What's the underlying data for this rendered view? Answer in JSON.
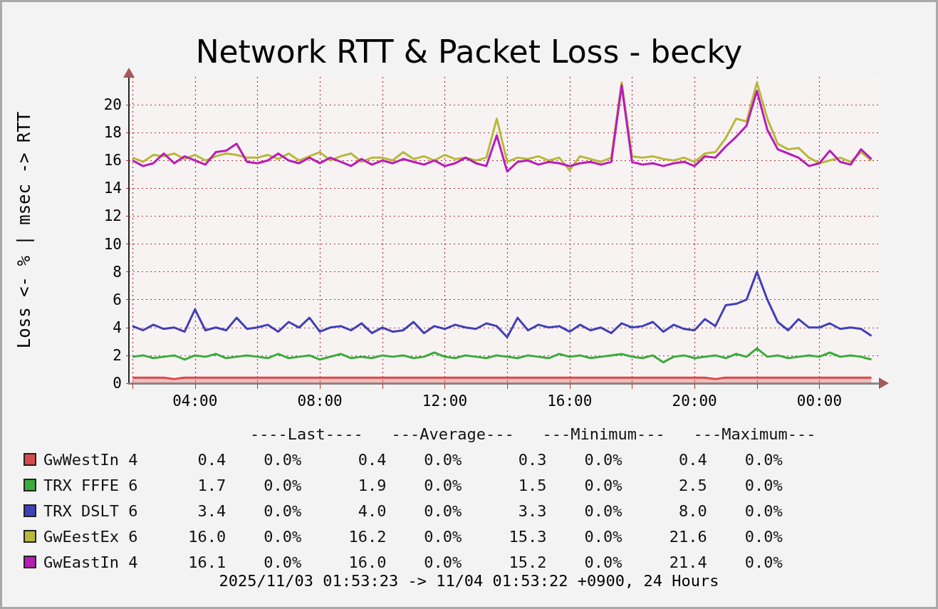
{
  "chart_data": {
    "type": "line",
    "title": "Network RTT & Packet Loss - becky",
    "ylabel": "Loss <- % | msec -> RTT",
    "xlim": [
      "2025-11-03T01:53",
      "2025-11-04T01:53"
    ],
    "xticks": [
      {
        "value": "2025-11-03T02:00",
        "label": null
      },
      {
        "value": "2025-11-03T04:00",
        "label": "04:00"
      },
      {
        "value": "2025-11-03T06:00",
        "label": null
      },
      {
        "value": "2025-11-03T08:00",
        "label": "08:00"
      },
      {
        "value": "2025-11-03T10:00",
        "label": null
      },
      {
        "value": "2025-11-03T12:00",
        "label": "12:00"
      },
      {
        "value": "2025-11-03T14:00",
        "label": null
      },
      {
        "value": "2025-11-03T16:00",
        "label": "16:00"
      },
      {
        "value": "2025-11-03T18:00",
        "label": null
      },
      {
        "value": "2025-11-03T20:00",
        "label": "20:00"
      },
      {
        "value": "2025-11-03T22:00",
        "label": null
      },
      {
        "value": "2025-11-04T00:00",
        "label": "00:00"
      }
    ],
    "ylim": [
      0,
      22
    ],
    "yticks": [
      0,
      2,
      4,
      6,
      8,
      10,
      12,
      14,
      16,
      18,
      20
    ],
    "grid": true,
    "legend": "bottom",
    "x": [
      "2025-11-03T02:00",
      "2025-11-03T02:20",
      "2025-11-03T02:40",
      "2025-11-03T03:00",
      "2025-11-03T03:20",
      "2025-11-03T03:40",
      "2025-11-03T04:00",
      "2025-11-03T04:20",
      "2025-11-03T04:40",
      "2025-11-03T05:00",
      "2025-11-03T05:20",
      "2025-11-03T05:40",
      "2025-11-03T06:00",
      "2025-11-03T06:20",
      "2025-11-03T06:40",
      "2025-11-03T07:00",
      "2025-11-03T07:20",
      "2025-11-03T07:40",
      "2025-11-03T08:00",
      "2025-11-03T08:20",
      "2025-11-03T08:40",
      "2025-11-03T09:00",
      "2025-11-03T09:20",
      "2025-11-03T09:40",
      "2025-11-03T10:00",
      "2025-11-03T10:20",
      "2025-11-03T10:40",
      "2025-11-03T11:00",
      "2025-11-03T11:20",
      "2025-11-03T11:40",
      "2025-11-03T12:00",
      "2025-11-03T12:20",
      "2025-11-03T12:40",
      "2025-11-03T13:00",
      "2025-11-03T13:20",
      "2025-11-03T13:40",
      "2025-11-03T14:00",
      "2025-11-03T14:20",
      "2025-11-03T14:40",
      "2025-11-03T15:00",
      "2025-11-03T15:20",
      "2025-11-03T15:40",
      "2025-11-03T16:00",
      "2025-11-03T16:20",
      "2025-11-03T16:40",
      "2025-11-03T17:00",
      "2025-11-03T17:20",
      "2025-11-03T17:40",
      "2025-11-03T18:00",
      "2025-11-03T18:20",
      "2025-11-03T18:40",
      "2025-11-03T19:00",
      "2025-11-03T19:20",
      "2025-11-03T19:40",
      "2025-11-03T20:00",
      "2025-11-03T20:20",
      "2025-11-03T20:40",
      "2025-11-03T21:00",
      "2025-11-03T21:20",
      "2025-11-03T21:40",
      "2025-11-03T22:00",
      "2025-11-03T22:20",
      "2025-11-03T22:40",
      "2025-11-03T23:00",
      "2025-11-03T23:20",
      "2025-11-03T23:40",
      "2025-11-04T00:00",
      "2025-11-04T00:20",
      "2025-11-04T00:40",
      "2025-11-04T01:00",
      "2025-11-04T01:20",
      "2025-11-04T01:40"
    ],
    "series": [
      {
        "name": "GwWestIn 4",
        "type": "area",
        "color": "#d84a4a",
        "values": [
          0.4,
          0.4,
          0.4,
          0.4,
          0.3,
          0.4,
          0.4,
          0.4,
          0.4,
          0.4,
          0.4,
          0.4,
          0.4,
          0.4,
          0.4,
          0.4,
          0.4,
          0.4,
          0.4,
          0.4,
          0.4,
          0.4,
          0.4,
          0.4,
          0.4,
          0.4,
          0.4,
          0.4,
          0.4,
          0.4,
          0.4,
          0.4,
          0.4,
          0.4,
          0.4,
          0.4,
          0.4,
          0.4,
          0.4,
          0.4,
          0.4,
          0.4,
          0.4,
          0.4,
          0.4,
          0.4,
          0.4,
          0.4,
          0.4,
          0.4,
          0.4,
          0.4,
          0.4,
          0.4,
          0.4,
          0.4,
          0.3,
          0.4,
          0.4,
          0.4,
          0.4,
          0.4,
          0.4,
          0.4,
          0.4,
          0.4,
          0.4,
          0.4,
          0.4,
          0.4,
          0.4,
          0.4
        ]
      },
      {
        "name": "TRX FFFE 6",
        "type": "line",
        "color": "#3aac3a",
        "values": [
          1.9,
          2.0,
          1.8,
          1.9,
          2.0,
          1.7,
          2.0,
          1.9,
          2.1,
          1.8,
          1.9,
          2.0,
          1.9,
          1.8,
          2.1,
          1.8,
          1.9,
          2.0,
          1.7,
          1.9,
          2.1,
          1.8,
          1.9,
          1.8,
          2.0,
          1.9,
          2.0,
          1.8,
          1.9,
          2.2,
          1.9,
          1.8,
          2.0,
          1.9,
          1.8,
          2.0,
          1.9,
          1.8,
          2.0,
          1.9,
          1.8,
          2.1,
          1.9,
          2.0,
          1.8,
          1.9,
          2.0,
          2.1,
          1.9,
          1.8,
          2.0,
          1.5,
          1.9,
          2.0,
          1.8,
          1.9,
          2.0,
          1.8,
          2.1,
          1.9,
          2.5,
          1.9,
          2.0,
          1.8,
          1.9,
          2.0,
          1.9,
          2.2,
          1.9,
          2.0,
          1.9,
          1.7
        ]
      },
      {
        "name": "TRX DSLT 6",
        "type": "line",
        "color": "#4040b8",
        "values": [
          4.1,
          3.8,
          4.2,
          3.9,
          4.0,
          3.7,
          5.3,
          3.8,
          4.0,
          3.8,
          4.7,
          3.9,
          4.0,
          4.2,
          3.7,
          4.4,
          4.0,
          4.7,
          3.7,
          4.0,
          4.1,
          3.8,
          4.3,
          3.6,
          4.0,
          3.7,
          3.8,
          4.4,
          3.6,
          4.1,
          3.9,
          4.2,
          4.0,
          3.9,
          4.3,
          4.1,
          3.3,
          4.7,
          3.8,
          4.2,
          4.0,
          4.1,
          3.7,
          4.2,
          3.8,
          4.0,
          3.6,
          4.3,
          4.0,
          4.1,
          4.4,
          3.7,
          4.2,
          3.9,
          3.8,
          4.6,
          4.1,
          5.6,
          5.7,
          6.0,
          8.0,
          6.0,
          4.4,
          3.8,
          4.6,
          4.0,
          4.0,
          4.3,
          3.9,
          4.0,
          3.9,
          3.4
        ]
      },
      {
        "name": "GwEestEx 6",
        "type": "line",
        "color": "#b8b83a",
        "values": [
          16.2,
          15.9,
          16.4,
          16.3,
          16.5,
          16.1,
          16.4,
          16.0,
          16.3,
          16.5,
          16.4,
          16.2,
          16.2,
          16.4,
          16.1,
          16.5,
          16.0,
          16.3,
          16.6,
          16.0,
          16.3,
          16.5,
          15.9,
          16.2,
          16.2,
          16.0,
          16.6,
          16.1,
          16.3,
          16.0,
          16.4,
          16.1,
          16.2,
          16.0,
          16.2,
          19.0,
          15.9,
          16.2,
          16.1,
          16.3,
          16.0,
          16.2,
          15.3,
          16.3,
          16.1,
          15.9,
          16.2,
          21.6,
          16.3,
          16.2,
          16.3,
          16.1,
          16.0,
          16.2,
          15.9,
          16.5,
          16.6,
          17.6,
          19.0,
          18.8,
          21.6,
          19.0,
          17.2,
          16.8,
          16.9,
          16.2,
          15.8,
          16.0,
          16.2,
          15.9,
          16.6,
          16.0
        ]
      },
      {
        "name": "GwEastIn 4",
        "type": "line",
        "color": "#b81cb8",
        "values": [
          16.0,
          15.6,
          15.8,
          16.5,
          15.8,
          16.3,
          16.0,
          15.7,
          16.6,
          16.7,
          17.2,
          15.9,
          15.8,
          16.0,
          16.5,
          16.0,
          15.8,
          16.2,
          15.8,
          16.2,
          15.9,
          15.6,
          16.1,
          15.7,
          16.0,
          15.8,
          16.1,
          15.9,
          15.7,
          16.0,
          15.6,
          15.8,
          16.2,
          15.8,
          15.6,
          17.8,
          15.2,
          15.9,
          16.0,
          15.7,
          15.9,
          15.8,
          15.6,
          15.8,
          15.9,
          15.7,
          15.9,
          21.4,
          15.9,
          15.7,
          15.8,
          15.6,
          15.8,
          15.9,
          15.6,
          16.3,
          16.2,
          17.0,
          17.7,
          18.5,
          21.0,
          18.2,
          16.8,
          16.5,
          16.2,
          15.6,
          15.8,
          16.7,
          15.9,
          15.7,
          16.8,
          16.1
        ]
      }
    ],
    "annotations": [
      "----Last----   ---Average---   ---Minimum---   ---Maximum---",
      "  0.4    0.0%      0.4    0.0%      0.3    0.0%      0.4    0.0%",
      "  1.7    0.0%      1.9    0.0%      1.5    0.0%      2.5    0.0%",
      "  3.4    0.0%      4.0    0.0%      3.3    0.0%      8.0    0.0%",
      " 16.0    0.0%     16.2    0.0%     15.3    0.0%     21.6    0.0%",
      " 16.1    0.0%     16.0    0.0%     15.2    0.0%     21.4    0.0%",
      "2025/11/03 01:53:23 -> 11/04 01:53:22 +0900, 24 Hours"
    ]
  }
}
